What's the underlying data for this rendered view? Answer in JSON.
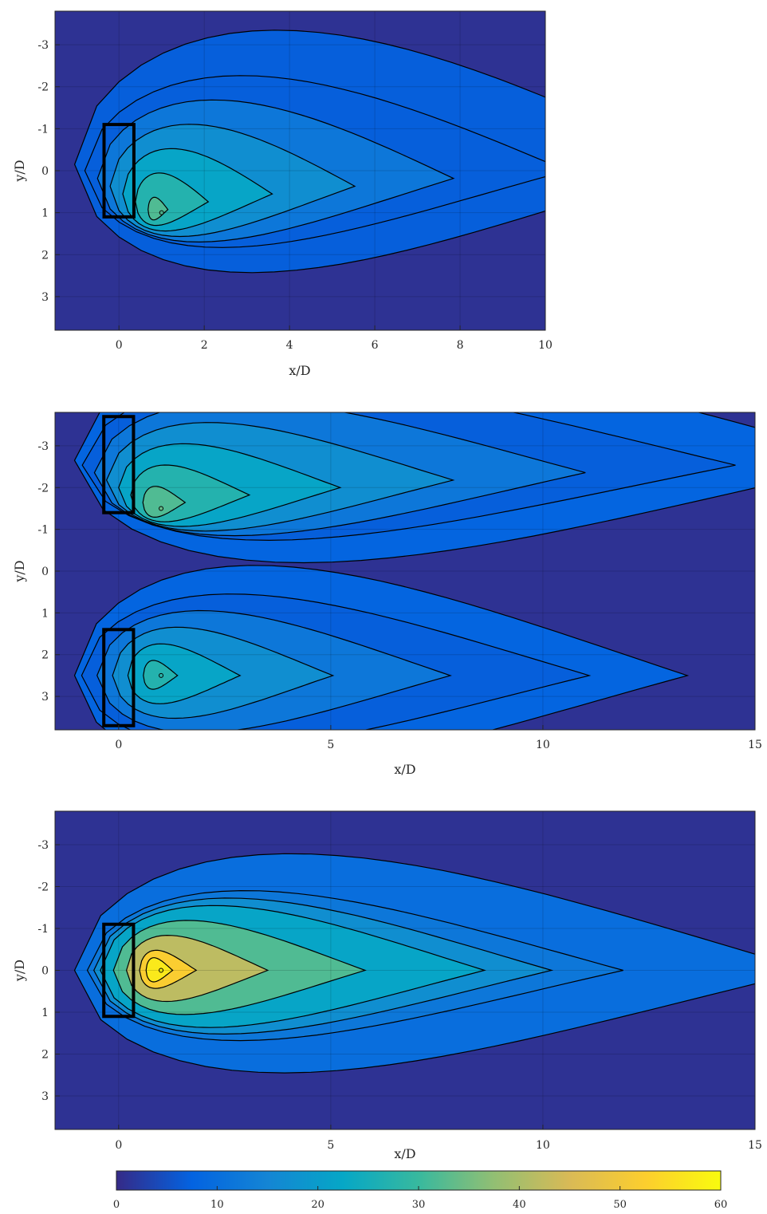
{
  "colorbar": {
    "range": [
      0,
      60
    ],
    "ticks": [
      "0",
      "10",
      "20",
      "30",
      "40",
      "50",
      "60"
    ],
    "colormap": "parula",
    "stops": [
      "#352a87",
      "#0363e1",
      "#1485d4",
      "#06a7c6",
      "#38b99e",
      "#92bf73",
      "#d9ba56",
      "#fcce2e",
      "#f9fb0e"
    ]
  },
  "chart_data": [
    {
      "type": "contour",
      "xlabel": "x/D",
      "ylabel": "y/D",
      "xlim": [
        -1.5,
        10
      ],
      "ylim": [
        -3.8,
        3.8
      ],
      "y_reversed": true,
      "xticks": [
        "0",
        "2",
        "4",
        "6",
        "8",
        "10"
      ],
      "yticks": [
        "-3",
        "-2",
        "-1",
        "0",
        "1",
        "2",
        "3"
      ],
      "grid": true,
      "sources": [
        {
          "label": "",
          "x": [
            -0.35,
            0.35
          ],
          "y": [
            -1.1,
            1.1
          ]
        }
      ],
      "peaks": [
        {
          "x": 1.0,
          "y": 1.0,
          "value": 32
        }
      ],
      "background_level": 5,
      "contour_levels": [
        5,
        10,
        15,
        20,
        25,
        30
      ]
    },
    {
      "type": "contour",
      "xlabel": "x/D",
      "ylabel": "y/D",
      "xlim": [
        -1.5,
        15
      ],
      "ylim": [
        -3.8,
        3.8
      ],
      "y_reversed": true,
      "xticks": [
        "0",
        "5",
        "10",
        "15"
      ],
      "yticks": [
        "-3",
        "-2",
        "-1",
        "0",
        "1",
        "2",
        "3"
      ],
      "grid": true,
      "sources": [
        {
          "label": "",
          "x": [
            -0.35,
            0.35
          ],
          "y": [
            -3.7,
            -1.4
          ]
        },
        {
          "label": "",
          "x": [
            -0.35,
            0.35
          ],
          "y": [
            1.4,
            3.7
          ]
        }
      ],
      "peaks": [
        {
          "x": 1.0,
          "y": -1.5,
          "value": 34
        },
        {
          "x": 1.0,
          "y": 2.5,
          "value": 28
        }
      ],
      "background_level": 6,
      "contour_levels": [
        5,
        10,
        15,
        20,
        25,
        30
      ]
    },
    {
      "type": "contour",
      "xlabel": "x/D",
      "ylabel": "y/D",
      "xlim": [
        -1.5,
        15
      ],
      "ylim": [
        -3.8,
        3.8
      ],
      "y_reversed": true,
      "xticks": [
        "0",
        "5",
        "10",
        "15"
      ],
      "yticks": [
        "-3",
        "-2",
        "-1",
        "0",
        "1",
        "2",
        "3"
      ],
      "grid": true,
      "sources": [
        {
          "label": "",
          "x": [
            -0.35,
            0.35
          ],
          "y": [
            -1.1,
            1.1
          ]
        }
      ],
      "peaks": [
        {
          "x": 1.0,
          "y": 0.0,
          "value": 60
        }
      ],
      "background_level": 8,
      "contour_levels": [
        10,
        15,
        20,
        30,
        40,
        50,
        55
      ]
    }
  ]
}
